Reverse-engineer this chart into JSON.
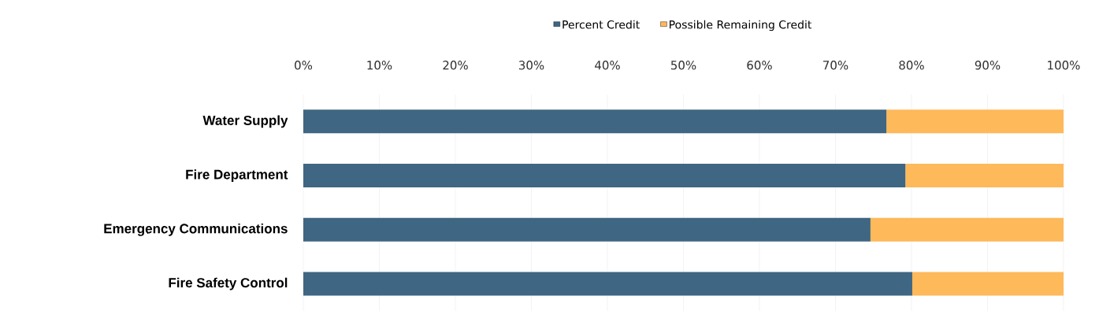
{
  "chart_data": {
    "type": "bar",
    "orientation": "horizontal",
    "stacked": true,
    "categories": [
      "Water Supply",
      "Fire Department",
      "Emergency Communications",
      "Fire Safety Control"
    ],
    "series": [
      {
        "name": "Percent Credit",
        "color": "#3f6682",
        "values": [
          76.7,
          79.2,
          74.6,
          80.1
        ]
      },
      {
        "name": "Possible Remaining Credit",
        "color": "#fdb95a",
        "values": [
          23.3,
          20.8,
          25.4,
          19.9
        ]
      }
    ],
    "xlim": [
      0,
      100
    ],
    "xticks": [
      {
        "value": 0,
        "label": "0%"
      },
      {
        "value": 10,
        "label": "10%"
      },
      {
        "value": 20,
        "label": "20%"
      },
      {
        "value": 30,
        "label": "30%"
      },
      {
        "value": 40,
        "label": "40%"
      },
      {
        "value": 50,
        "label": "50%"
      },
      {
        "value": 60,
        "label": "60%"
      },
      {
        "value": 70,
        "label": "70%"
      },
      {
        "value": 80,
        "label": "80%"
      },
      {
        "value": 90,
        "label": "90%"
      },
      {
        "value": 100,
        "label": "100%"
      }
    ],
    "grid": "x",
    "legend": "top"
  }
}
